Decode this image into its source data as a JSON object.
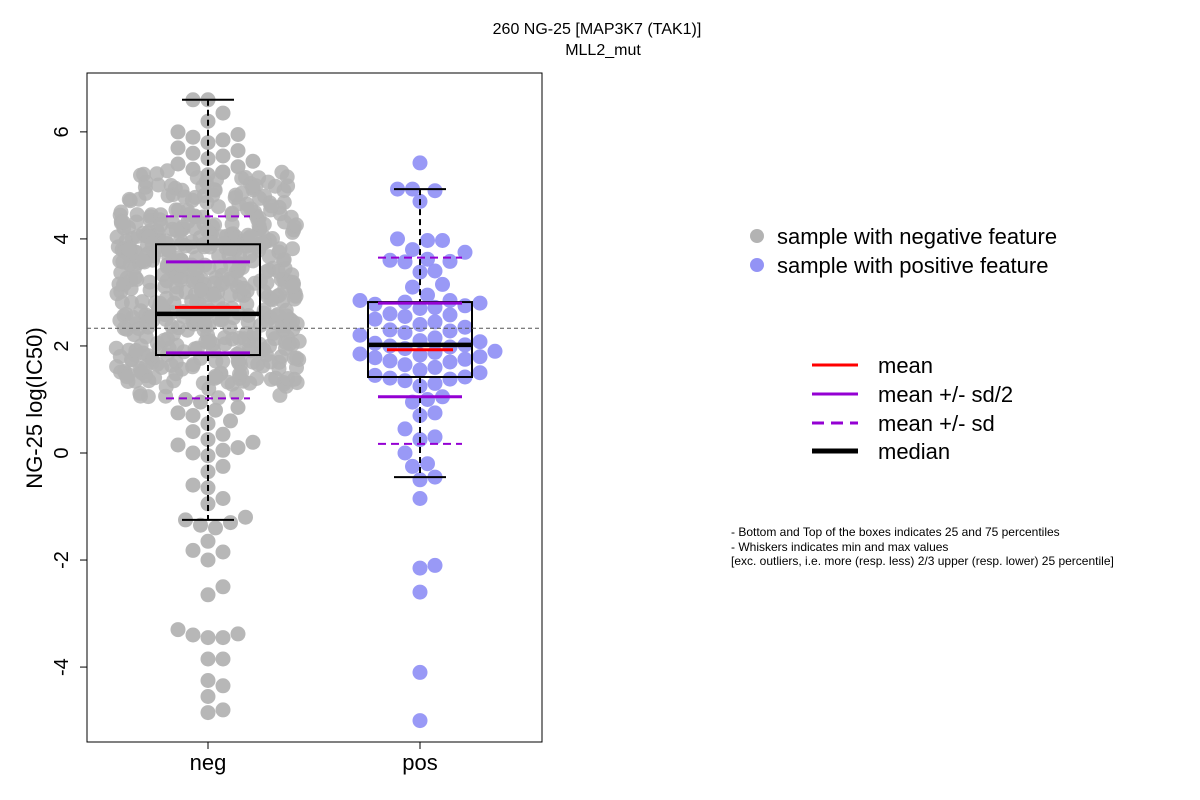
{
  "chart_data": {
    "type": "scatter",
    "title": "260 NG-25 [MAP3K7 (TAK1)]",
    "subtitle": "MLL2_mut",
    "ylabel": "NG-25 log(IC50)",
    "xlabel": "",
    "categories": [
      "neg",
      "pos"
    ],
    "ylim": [
      -5.4,
      7.1
    ],
    "yticks": [
      -4,
      -2,
      0,
      2,
      4,
      6
    ],
    "ytick_labels": [
      "-4",
      "-2",
      "0",
      "2",
      "4",
      "6"
    ],
    "reference_line_y": 2.33,
    "grid": false,
    "legend_position": "right",
    "legend": [
      {
        "label": "sample with negative feature",
        "symbol": "point",
        "color": "#b3b3b3"
      },
      {
        "label": "sample with positive feature",
        "symbol": "point",
        "color": "#9393f5"
      }
    ],
    "legend_lines": [
      {
        "label": "mean",
        "style": "solid",
        "color": "#ff0000"
      },
      {
        "label": "mean +/- sd/2",
        "style": "solid",
        "color": "#9400d3"
      },
      {
        "label": "mean +/- sd",
        "style": "dashed",
        "color": "#9400d3"
      },
      {
        "label": "median",
        "style": "thick",
        "color": "#000000"
      }
    ],
    "notes": [
      "- Bottom and Top of the boxes indicates 25 and 75 percentiles",
      "- Whiskers indicates min and max values",
      "[exc. outliers, i.e. more (resp. less) 2/3 upper (resp. lower) 25 percentile]"
    ],
    "groups": [
      {
        "name": "neg",
        "color": "#b3b3b3",
        "stats": {
          "median": 2.6,
          "q1": 1.83,
          "q3": 3.9,
          "whisker_low": -1.25,
          "whisker_high": 6.6,
          "mean": 2.72,
          "mean_minus_half_sd": 1.87,
          "mean_plus_half_sd": 3.57,
          "mean_minus_sd": 1.02,
          "mean_plus_sd": 4.42
        },
        "points": [
          6.6,
          6.6,
          6.35,
          6.2,
          6.0,
          5.95,
          5.9,
          5.85,
          5.8,
          5.7,
          5.65,
          5.6,
          5.55,
          5.5,
          5.45,
          5.4,
          5.35,
          5.3,
          5.25,
          5.2,
          -1.2,
          -1.25,
          -1.3,
          -1.35,
          -1.4,
          -1.65,
          -1.82,
          -1.85,
          -2.0,
          -2.5,
          -2.65,
          -3.3,
          -3.38,
          -3.45,
          -3.45,
          -3.4,
          -3.85,
          -3.85,
          -4.25,
          -4.35,
          -4.55,
          -4.8,
          -4.85,
          0.6,
          0.55,
          0.4,
          0.35,
          0.25,
          0.2,
          0.15,
          0.1,
          0.05,
          0.0,
          -0.05,
          -0.25,
          -0.35,
          -0.6,
          -0.65,
          -0.85,
          -0.95,
          0.7,
          0.75,
          0.8,
          0.85,
          0.95,
          1.0
        ]
      },
      {
        "name": "pos",
        "color": "#9393f5",
        "stats": {
          "median": 2.02,
          "q1": 1.42,
          "q3": 2.82,
          "whisker_low": -0.45,
          "whisker_high": 4.93,
          "mean": 1.93,
          "mean_minus_half_sd": 1.05,
          "mean_plus_half_sd": 2.8,
          "mean_minus_sd": 0.17,
          "mean_plus_sd": 3.65
        },
        "points": [
          5.42,
          4.93,
          4.93,
          4.9,
          4.7,
          4.0,
          3.97,
          3.97,
          3.8,
          3.75,
          3.62,
          3.6,
          3.58,
          3.57,
          3.4,
          3.38,
          3.15,
          3.1,
          2.95,
          2.85,
          2.85,
          2.82,
          2.8,
          2.78,
          2.75,
          2.72,
          2.7,
          2.6,
          2.58,
          2.55,
          2.5,
          2.45,
          2.4,
          2.35,
          2.3,
          2.28,
          2.25,
          2.2,
          2.15,
          2.1,
          2.08,
          2.05,
          2.02,
          2.0,
          1.98,
          1.95,
          1.9,
          1.88,
          1.85,
          1.83,
          1.8,
          1.78,
          1.75,
          1.72,
          1.7,
          1.65,
          1.6,
          1.55,
          1.5,
          1.45,
          1.42,
          1.4,
          1.38,
          1.35,
          1.3,
          1.25,
          1.05,
          1.0,
          0.95,
          0.75,
          0.7,
          0.45,
          0.3,
          0.25,
          0.0,
          -0.2,
          -0.25,
          -0.45,
          -0.5,
          -0.85,
          -2.1,
          -2.15,
          -2.6,
          -4.1,
          -5.0
        ]
      }
    ]
  }
}
